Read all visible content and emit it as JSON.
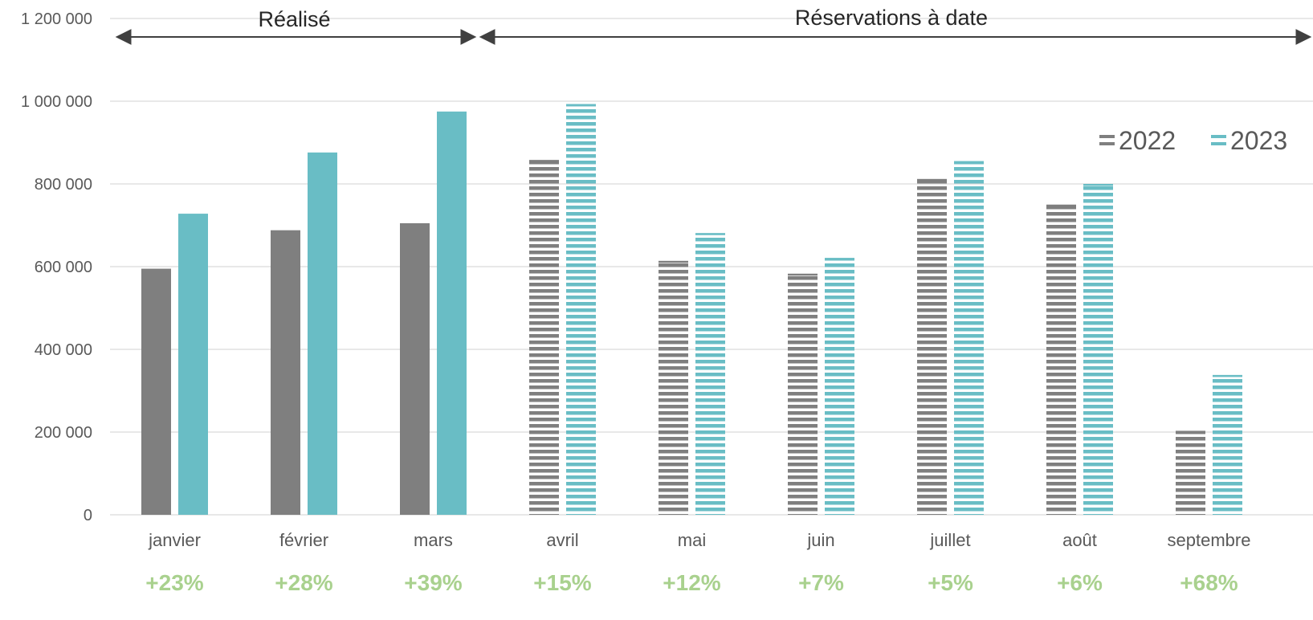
{
  "colors": {
    "s2022": "#7f7f7f",
    "s2023": "#69bdc5",
    "grid": "#d9d9d9",
    "growth": "#a9d18e",
    "arrow": "#404040"
  },
  "chart_data": {
    "type": "bar",
    "categories": [
      "janvier",
      "février",
      "mars",
      "avril",
      "mai",
      "juin",
      "juillet",
      "août",
      "septembre"
    ],
    "series": [
      {
        "name": "2022",
        "values": [
          595000,
          688000,
          705000,
          858000,
          614000,
          583000,
          812000,
          750000,
          203000
        ]
      },
      {
        "name": "2023",
        "values": [
          728000,
          876000,
          975000,
          993000,
          681000,
          621000,
          855000,
          800000,
          338000
        ]
      }
    ],
    "ylim": [
      0,
      1200000
    ],
    "yticks": [
      0,
      200000,
      400000,
      600000,
      800000,
      1000000,
      1200000
    ],
    "ytick_labels": [
      "0",
      "200 000",
      "400 000",
      "600 000",
      "800 000",
      "1 000 000",
      "1 200 000"
    ],
    "growth_labels": [
      "+23%",
      "+28%",
      "+39%",
      "+15%",
      "+12%",
      "+7%",
      "+5%",
      "+6%",
      "+68%"
    ],
    "hatched_from_index": 3,
    "periods": [
      {
        "label": "Réalisé",
        "from": 0,
        "to": 2
      },
      {
        "label": "Réservations à date",
        "from": 3,
        "to": 8
      }
    ],
    "legend_position": "top-right",
    "grid": true
  }
}
